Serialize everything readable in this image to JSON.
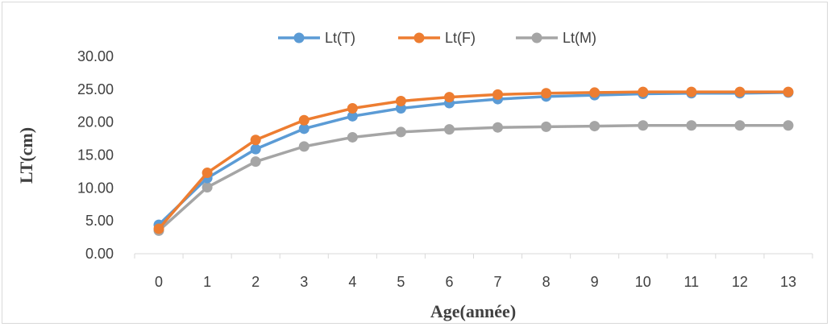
{
  "chart_data": {
    "type": "line",
    "title": "",
    "xlabel": "Age(année)",
    "ylabel": "LT(cm)",
    "categories": [
      "0",
      "1",
      "2",
      "3",
      "4",
      "5",
      "6",
      "7",
      "8",
      "9",
      "10",
      "11",
      "12",
      "13"
    ],
    "yticks": [
      "0.00",
      "5.00",
      "10.00",
      "15.00",
      "20.00",
      "25.00",
      "30.00"
    ],
    "ylim": [
      0,
      30
    ],
    "grid": false,
    "legend": "top",
    "series": [
      {
        "name": "Lt(T)",
        "color": "#5B9BD5",
        "values": [
          4.4,
          11.5,
          15.9,
          19.0,
          20.9,
          22.1,
          22.9,
          23.5,
          23.9,
          24.1,
          24.3,
          24.4,
          24.4,
          24.5
        ]
      },
      {
        "name": "Lt(F)",
        "color": "#ED7D31",
        "values": [
          3.8,
          12.3,
          17.3,
          20.3,
          22.1,
          23.2,
          23.8,
          24.2,
          24.4,
          24.5,
          24.6,
          24.6,
          24.6,
          24.6
        ]
      },
      {
        "name": "Lt(M)",
        "color": "#A5A5A5",
        "values": [
          3.5,
          10.1,
          14.0,
          16.3,
          17.7,
          18.5,
          18.9,
          19.2,
          19.3,
          19.4,
          19.5,
          19.5,
          19.5,
          19.5
        ]
      }
    ]
  }
}
